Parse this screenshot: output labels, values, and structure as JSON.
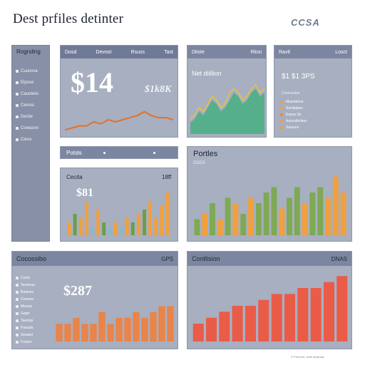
{
  "page": {
    "title": "Dest prfiles detinter",
    "logo": "CCSA"
  },
  "sidebar": {
    "title": "Rogrsling",
    "items": [
      {
        "label": "Cuuovsa"
      },
      {
        "label": "Elpose"
      },
      {
        "label": "Cauotelsi"
      },
      {
        "label": "Cemos"
      },
      {
        "label": "Dectie"
      },
      {
        "label": "Cowasnn"
      },
      {
        "label": "Cieos"
      }
    ]
  },
  "revenue_panel": {
    "tabs": [
      "Dosd",
      "Devost",
      "Rsuss",
      "Tast"
    ],
    "value": "$14",
    "sub_value": "$1k8K"
  },
  "area_panel": {
    "tabs": [
      "Dtiste",
      "Rlosi"
    ],
    "label": "Net diillion"
  },
  "kpi_panel": {
    "tabs": [
      "Ravtl",
      "Losct"
    ],
    "value": "$1 $1 3PS",
    "legend_title": "Cnseroulas",
    "legend": [
      {
        "label": "Mopoilerns",
        "color": "#f2a03d"
      },
      {
        "label": "Socllaliavs",
        "color": "#f2a03d"
      },
      {
        "label": "Eopse-Ss",
        "color": "#e98a2e"
      },
      {
        "label": "Ascoullorlass",
        "color": "#f2a03d"
      },
      {
        "label": "Sasoure",
        "color": "#f2a03d"
      }
    ]
  },
  "filter_bar": {
    "label": "Potsls"
  },
  "small_bars_panel": {
    "title": "Cecita",
    "right": "18ff",
    "value": "$81"
  },
  "portles_panel": {
    "title": "Portles",
    "sub": "DDDS"
  },
  "bottom_left_panel": {
    "title": "Cocossibo",
    "right": "GPS",
    "value": "$287",
    "list": [
      "Cosst",
      "Tevmeas",
      "Bastons",
      "Cosmac",
      "Mesvai",
      "Gagrt",
      "Tasniop",
      "Pasuals",
      "Seaaiot",
      "Fresen"
    ]
  },
  "bottom_right_panel": {
    "title": "Contlision",
    "right": "DNAS"
  },
  "footer": {
    "text": "© Protoner, Iavilt dcasnaly"
  },
  "chart_data": [
    {
      "type": "line",
      "name": "revenue-trend",
      "x": [
        1,
        2,
        3,
        4,
        5,
        6,
        7,
        8,
        9,
        10,
        11,
        12,
        13,
        14,
        15,
        16
      ],
      "y": [
        2,
        3,
        4,
        4,
        6,
        5,
        7,
        6,
        7,
        8,
        9,
        11,
        9,
        8,
        8,
        7
      ],
      "ylim": [
        0,
        14
      ],
      "color": "#e2712a"
    },
    {
      "type": "area",
      "name": "net-area",
      "x": [
        1,
        2,
        3,
        4,
        5,
        6,
        7,
        8,
        9,
        10,
        11,
        12,
        13,
        14,
        15,
        16,
        17,
        18
      ],
      "series": [
        {
          "color": "#4caf85",
          "values": [
            3,
            4,
            6,
            5,
            7,
            9,
            8,
            6,
            7,
            9,
            11,
            10,
            8,
            9,
            11,
            12,
            10,
            11
          ]
        },
        {
          "color": "#e8c43a",
          "values": [
            4,
            5,
            7,
            6,
            8,
            10,
            9,
            7,
            8,
            11,
            12,
            11,
            9,
            10,
            12,
            13,
            11,
            12
          ]
        }
      ],
      "ylim": [
        0,
        14
      ]
    },
    {
      "type": "bar",
      "name": "small-bars",
      "categories": [
        "a",
        "b",
        "c",
        "d",
        "e",
        "f",
        "g",
        "h",
        "i",
        "j",
        "k",
        "l",
        "m",
        "n",
        "o",
        "p",
        "q",
        "r"
      ],
      "values": [
        3,
        5,
        4,
        8,
        2,
        6,
        3,
        2,
        3,
        2,
        4,
        3,
        5,
        6,
        8,
        4,
        7,
        10
      ],
      "colors": [
        "#f2a03d",
        "#6a9e4a",
        "#f2a03d",
        "#f2a03d",
        "#8fb5c9",
        "#f2a03d",
        "#6a9e4a",
        "#8fb5c9",
        "#f2a03d",
        "#8fb5c9",
        "#f2a03d",
        "#6a9e4a",
        "#f2a03d",
        "#6a9e4a",
        "#f2a03d",
        "#f2a03d",
        "#f2a03d",
        "#f2a03d"
      ],
      "ylim": [
        0,
        11
      ]
    },
    {
      "type": "bar",
      "name": "portles-bars",
      "categories": [
        "a",
        "b",
        "c",
        "d",
        "e",
        "f",
        "g",
        "h",
        "i",
        "j",
        "k",
        "l",
        "m",
        "n",
        "o",
        "p",
        "q",
        "r",
        "s",
        "t"
      ],
      "values": [
        3,
        4,
        6,
        3,
        7,
        6,
        4,
        7,
        6,
        8,
        9,
        5,
        7,
        9,
        6,
        8,
        9,
        7,
        11,
        8
      ],
      "colors": [
        "#7fa952",
        "#f2a03d",
        "#7fa952",
        "#f2a03d",
        "#7fa952",
        "#f2a03d",
        "#7fa952",
        "#f2a03d",
        "#7fa952",
        "#7fa952",
        "#7fa952",
        "#f2a03d",
        "#7fa952",
        "#7fa952",
        "#f2a03d",
        "#7fa952",
        "#7fa952",
        "#f2a03d",
        "#f2a03d",
        "#f2a03d"
      ],
      "ylim": [
        0,
        12
      ]
    },
    {
      "type": "bar",
      "name": "bottom-left-bars",
      "categories": [
        "a",
        "b",
        "c",
        "d",
        "e",
        "f",
        "g",
        "h",
        "i",
        "j",
        "k",
        "l",
        "m",
        "n"
      ],
      "values": [
        3,
        3,
        4,
        3,
        3,
        5,
        3,
        4,
        4,
        5,
        4,
        5,
        6,
        6
      ],
      "colors": [
        "#e9844a",
        "#e9844a",
        "#e9844a",
        "#e9844a",
        "#e9844a",
        "#e9844a",
        "#e9844a",
        "#e9844a",
        "#e9844a",
        "#e9844a",
        "#e9844a",
        "#e9844a",
        "#e9844a",
        "#e9844a"
      ],
      "ylim": [
        0,
        8
      ]
    },
    {
      "type": "bar",
      "name": "bottom-right-bars",
      "categories": [
        "a",
        "b",
        "c",
        "d",
        "e",
        "f",
        "g",
        "h",
        "i",
        "j",
        "k",
        "l"
      ],
      "values": [
        3,
        4,
        5,
        6,
        6,
        7,
        8,
        8,
        9,
        9,
        10,
        11
      ],
      "colors": [
        "#ea5b48",
        "#ea5b48",
        "#ea5b48",
        "#ea5b48",
        "#ea5b48",
        "#ea5b48",
        "#ea5b48",
        "#ea5b48",
        "#ea5b48",
        "#ea5b48",
        "#ea5b48",
        "#ea5b48"
      ],
      "ylim": [
        0,
        12
      ]
    }
  ]
}
